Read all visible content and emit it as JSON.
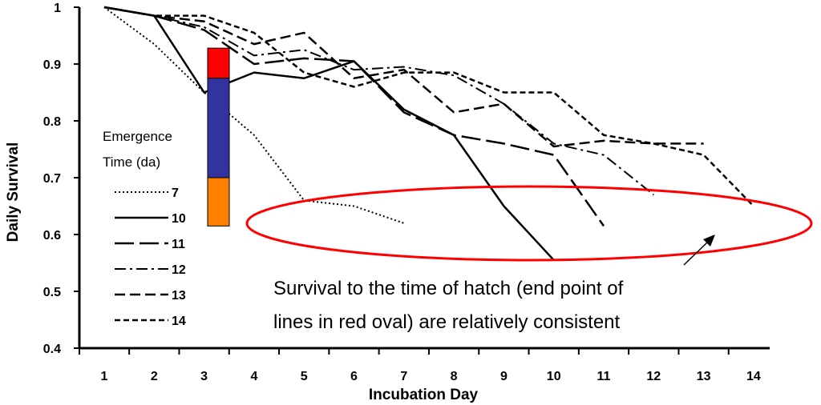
{
  "chart_data": {
    "type": "line",
    "xlabel": "Incubation Day",
    "ylabel": "Daily Survival",
    "xlim": [
      1,
      14
    ],
    "ylim": [
      0.4,
      1
    ],
    "x_ticks": [
      "1",
      "2",
      "3",
      "4",
      "5",
      "6",
      "7",
      "8",
      "9",
      "10",
      "11",
      "12",
      "13",
      "14"
    ],
    "y_ticks": [
      "0.4",
      "0.5",
      "0.6",
      "0.7",
      "0.8",
      "0.9",
      "1"
    ],
    "legend": {
      "title_lines": [
        "Emergence",
        "Time (da)"
      ],
      "placement": "left"
    },
    "series": [
      {
        "name": "7",
        "dash": "dotted",
        "x": [
          1,
          2,
          3,
          4,
          5,
          6,
          7
        ],
        "y": [
          1.0,
          0.935,
          0.85,
          0.775,
          0.66,
          0.65,
          0.62
        ]
      },
      {
        "name": "10",
        "dash": "solid",
        "x": [
          1,
          2,
          3,
          4,
          5,
          6,
          7,
          8,
          9,
          10
        ],
        "y": [
          1.0,
          0.985,
          0.85,
          0.885,
          0.875,
          0.905,
          0.82,
          0.775,
          0.65,
          0.555
        ]
      },
      {
        "name": "11",
        "dash": "longdash",
        "x": [
          1,
          2,
          3,
          4,
          5,
          6,
          7,
          8,
          9,
          10,
          11
        ],
        "y": [
          1.0,
          0.985,
          0.96,
          0.9,
          0.91,
          0.905,
          0.815,
          0.775,
          0.76,
          0.74,
          0.615
        ]
      },
      {
        "name": "12",
        "dash": "dashdot",
        "x": [
          1,
          2,
          3,
          4,
          5,
          6,
          7,
          8,
          9,
          10,
          11,
          12
        ],
        "y": [
          1.0,
          0.985,
          0.965,
          0.915,
          0.925,
          0.89,
          0.895,
          0.88,
          0.83,
          0.76,
          0.74,
          0.67
        ]
      },
      {
        "name": "13",
        "dash": "dash",
        "x": [
          1,
          2,
          3,
          4,
          5,
          6,
          7,
          8,
          9,
          10,
          11,
          12,
          13
        ],
        "y": [
          1.0,
          0.985,
          0.975,
          0.935,
          0.955,
          0.875,
          0.89,
          0.815,
          0.83,
          0.755,
          0.765,
          0.76,
          0.76
        ]
      },
      {
        "name": "14",
        "dash": "shortdash",
        "x": [
          1,
          2,
          3,
          4,
          5,
          6,
          7,
          8,
          9,
          10,
          11,
          12,
          13,
          14
        ],
        "y": [
          1.0,
          0.985,
          0.985,
          0.955,
          0.885,
          0.86,
          0.885,
          0.885,
          0.85,
          0.85,
          0.775,
          0.76,
          0.74,
          0.65
        ]
      }
    ],
    "emergence_bar": [
      {
        "color": "#ff0000",
        "from": 0.875,
        "to": 0.928
      },
      {
        "color": "#3333a0",
        "from": 0.7,
        "to": 0.875
      },
      {
        "color": "#ff8000",
        "from": 0.615,
        "to": 0.7
      }
    ],
    "highlight_oval_color": "#ff0000",
    "annotation_lines": [
      "Survival to the time of hatch (end point of",
      "lines in red oval) are relatively consistent"
    ]
  }
}
